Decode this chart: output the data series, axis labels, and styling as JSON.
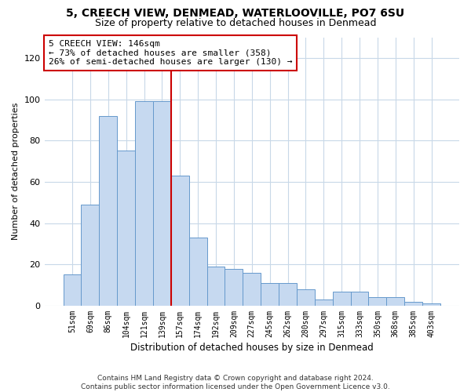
{
  "title": "5, CREECH VIEW, DENMEAD, WATERLOOVILLE, PO7 6SU",
  "subtitle": "Size of property relative to detached houses in Denmead",
  "xlabel": "Distribution of detached houses by size in Denmead",
  "ylabel": "Number of detached properties",
  "bar_labels": [
    "51sqm",
    "69sqm",
    "86sqm",
    "104sqm",
    "121sqm",
    "139sqm",
    "157sqm",
    "174sqm",
    "192sqm",
    "209sqm",
    "227sqm",
    "245sqm",
    "262sqm",
    "280sqm",
    "297sqm",
    "315sqm",
    "333sqm",
    "350sqm",
    "368sqm",
    "385sqm",
    "403sqm"
  ],
  "bar_values": [
    15,
    49,
    92,
    75,
    99,
    99,
    63,
    33,
    19,
    18,
    16,
    11,
    11,
    8,
    3,
    7,
    7,
    4,
    4,
    2,
    1
  ],
  "bar_color": "#c6d9f0",
  "bar_edge_color": "#6699cc",
  "ylim": [
    0,
    130
  ],
  "yticks": [
    0,
    20,
    40,
    60,
    80,
    100,
    120
  ],
  "annotation_title": "5 CREECH VIEW: 146sqm",
  "annotation_line1": "← 73% of detached houses are smaller (358)",
  "annotation_line2": "26% of semi-detached houses are larger (130) →",
  "vline_color": "#cc0000",
  "vline_bin_index": 5,
  "footer1": "Contains HM Land Registry data © Crown copyright and database right 2024.",
  "footer2": "Contains public sector information licensed under the Open Government Licence v3.0.",
  "title_fontsize": 10,
  "subtitle_fontsize": 9,
  "annotation_box_color": "#cc0000",
  "grid_color": "#c8d8e8"
}
